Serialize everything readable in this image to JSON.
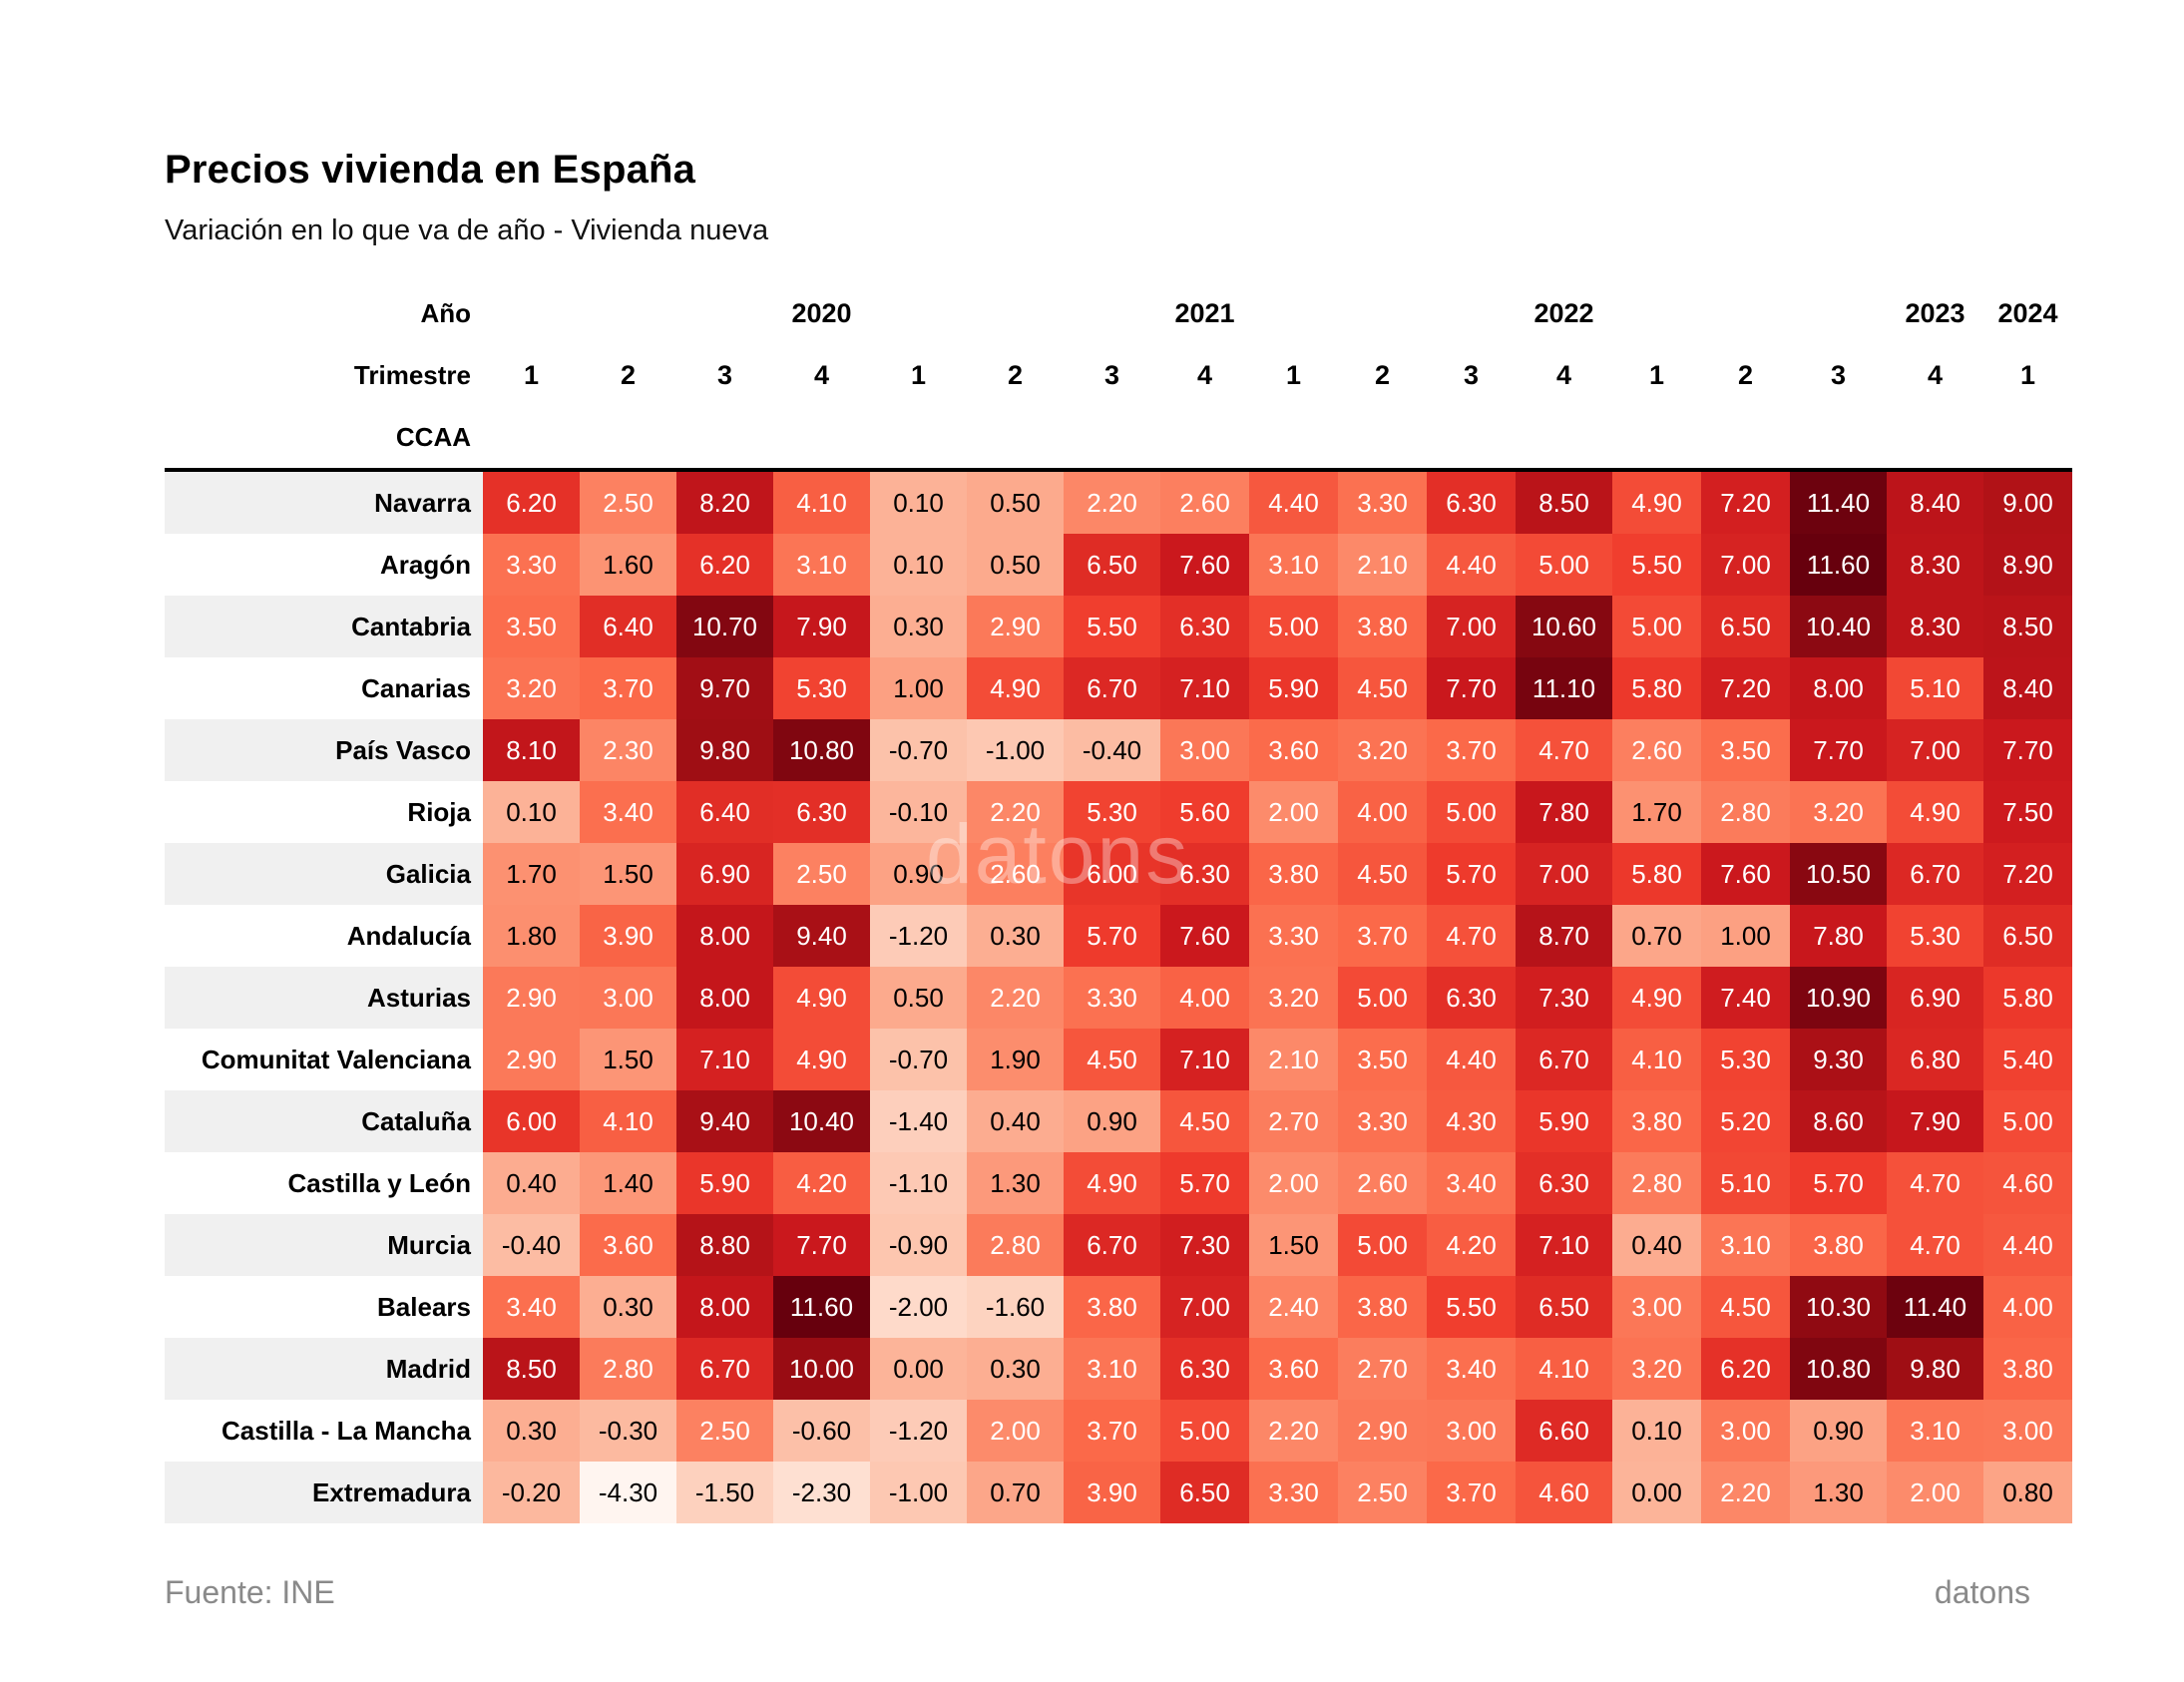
{
  "title": "Precios vivienda en España",
  "subtitle": "Variación en lo que va de año - Vivienda nueva",
  "watermark": "datons",
  "footer": {
    "source": "Fuente: INE",
    "brand": "datons"
  },
  "chart_data": {
    "type": "heatmap",
    "header": {
      "year_label": "Año",
      "quarter_label": "Trimestre",
      "rows_label": "CCAA"
    },
    "year_groups": [
      {
        "year": "2020",
        "quarters": [
          "1",
          "2",
          "3",
          "4"
        ]
      },
      {
        "year": "2021",
        "quarters": [
          "1",
          "2",
          "3",
          "4"
        ]
      },
      {
        "year": "2022",
        "quarters": [
          "1",
          "2",
          "3",
          "4"
        ]
      },
      {
        "year": "2023",
        "quarters": [
          "1",
          "2",
          "3",
          "4"
        ]
      },
      {
        "year": "2024",
        "quarters": [
          "1"
        ]
      }
    ],
    "rows": [
      {
        "ccaa": "Navarra",
        "values": [
          6.2,
          2.5,
          8.2,
          4.1,
          0.1,
          0.5,
          2.2,
          2.6,
          4.4,
          3.3,
          6.3,
          8.5,
          4.9,
          7.2,
          11.4,
          8.4,
          9.0
        ]
      },
      {
        "ccaa": "Aragón",
        "values": [
          3.3,
          1.6,
          6.2,
          3.1,
          0.1,
          0.5,
          6.5,
          7.6,
          3.1,
          2.1,
          4.4,
          5.0,
          5.5,
          7.0,
          11.6,
          8.3,
          8.9
        ]
      },
      {
        "ccaa": "Cantabria",
        "values": [
          3.5,
          6.4,
          10.7,
          7.9,
          0.3,
          2.9,
          5.5,
          6.3,
          5.0,
          3.8,
          7.0,
          10.6,
          5.0,
          6.5,
          10.4,
          8.3,
          8.5
        ]
      },
      {
        "ccaa": "Canarias",
        "values": [
          3.2,
          3.7,
          9.7,
          5.3,
          1.0,
          4.9,
          6.7,
          7.1,
          5.9,
          4.5,
          7.7,
          11.1,
          5.8,
          7.2,
          8.0,
          5.1,
          8.4
        ]
      },
      {
        "ccaa": "País Vasco",
        "values": [
          8.1,
          2.3,
          9.8,
          10.8,
          -0.7,
          -1.0,
          -0.4,
          3.0,
          3.6,
          3.2,
          3.7,
          4.7,
          2.6,
          3.5,
          7.7,
          7.0,
          7.7
        ]
      },
      {
        "ccaa": "Rioja",
        "values": [
          0.1,
          3.4,
          6.4,
          6.3,
          -0.1,
          2.2,
          5.3,
          5.6,
          2.0,
          4.0,
          5.0,
          7.8,
          1.7,
          2.8,
          3.2,
          4.9,
          7.5
        ]
      },
      {
        "ccaa": "Galicia",
        "values": [
          1.7,
          1.5,
          6.9,
          2.5,
          0.9,
          2.6,
          6.0,
          6.3,
          3.8,
          4.5,
          5.7,
          7.0,
          5.8,
          7.6,
          10.5,
          6.7,
          7.2
        ]
      },
      {
        "ccaa": "Andalucía",
        "values": [
          1.8,
          3.9,
          8.0,
          9.4,
          -1.2,
          0.3,
          5.7,
          7.6,
          3.3,
          3.7,
          4.7,
          8.7,
          0.7,
          1.0,
          7.8,
          5.3,
          6.5
        ]
      },
      {
        "ccaa": "Asturias",
        "values": [
          2.9,
          3.0,
          8.0,
          4.9,
          0.5,
          2.2,
          3.3,
          4.0,
          3.2,
          5.0,
          6.3,
          7.3,
          4.9,
          7.4,
          10.9,
          6.9,
          5.8
        ]
      },
      {
        "ccaa": "Comunitat Valenciana",
        "values": [
          2.9,
          1.5,
          7.1,
          4.9,
          -0.7,
          1.9,
          4.5,
          7.1,
          2.1,
          3.5,
          4.4,
          6.7,
          4.1,
          5.3,
          9.3,
          6.8,
          5.4
        ]
      },
      {
        "ccaa": "Cataluña",
        "values": [
          6.0,
          4.1,
          9.4,
          10.4,
          -1.4,
          0.4,
          0.9,
          4.5,
          2.7,
          3.3,
          4.3,
          5.9,
          3.8,
          5.2,
          8.6,
          7.9,
          5.0
        ]
      },
      {
        "ccaa": "Castilla y León",
        "values": [
          0.4,
          1.4,
          5.9,
          4.2,
          -1.1,
          1.3,
          4.9,
          5.7,
          2.0,
          2.6,
          3.4,
          6.3,
          2.8,
          5.1,
          5.7,
          4.7,
          4.6
        ]
      },
      {
        "ccaa": "Murcia",
        "values": [
          -0.4,
          3.6,
          8.8,
          7.7,
          -0.9,
          2.8,
          6.7,
          7.3,
          1.5,
          5.0,
          4.2,
          7.1,
          0.4,
          3.1,
          3.8,
          4.7,
          4.4
        ]
      },
      {
        "ccaa": "Balears",
        "values": [
          3.4,
          0.3,
          8.0,
          11.6,
          -2.0,
          -1.6,
          3.8,
          7.0,
          2.4,
          3.8,
          5.5,
          6.5,
          3.0,
          4.5,
          10.3,
          11.4,
          4.0
        ]
      },
      {
        "ccaa": "Madrid",
        "values": [
          8.5,
          2.8,
          6.7,
          10.0,
          0.0,
          0.3,
          3.1,
          6.3,
          3.6,
          2.7,
          3.4,
          4.1,
          3.2,
          6.2,
          10.8,
          9.8,
          3.8
        ]
      },
      {
        "ccaa": "Castilla - La Mancha",
        "values": [
          0.3,
          -0.3,
          2.5,
          -0.6,
          -1.2,
          2.0,
          3.7,
          5.0,
          2.2,
          2.9,
          3.0,
          6.6,
          0.1,
          3.0,
          0.9,
          3.1,
          3.0
        ]
      },
      {
        "ccaa": "Extremadura",
        "values": [
          -0.2,
          -4.3,
          -1.5,
          -2.3,
          -1.0,
          0.7,
          3.9,
          6.5,
          3.3,
          2.5,
          3.7,
          4.6,
          0.0,
          2.2,
          1.3,
          2.0,
          0.8
        ]
      }
    ],
    "value_decimals": 2,
    "colormap": {
      "name": "Reds",
      "vmin": -4.3,
      "vmax": 11.6,
      "stops": [
        "#fff5f0",
        "#fee0d2",
        "#fcbba1",
        "#fc9272",
        "#fb6a4a",
        "#ef3b2c",
        "#cb181d",
        "#a50f15",
        "#67000d"
      ]
    },
    "text_colors": {
      "dark": "#000000",
      "light": "#ffffff",
      "light_text_min_value": 2.0
    },
    "stripe_color": "#f0f0f0",
    "legend": "none",
    "grid": "off"
  }
}
